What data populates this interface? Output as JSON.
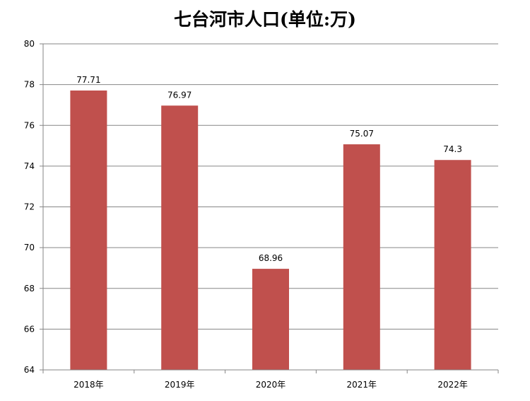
{
  "chart_data": {
    "type": "bar",
    "title": "七台河市人口(单位:万)",
    "xlabel": "",
    "ylabel": "",
    "categories": [
      "2018年",
      "2019年",
      "2020年",
      "2021年",
      "2022年"
    ],
    "values": [
      77.71,
      76.97,
      68.96,
      75.07,
      74.3
    ],
    "value_labels": [
      "77.71",
      "76.97",
      "68.96",
      "75.07",
      "74.3"
    ],
    "ylim": [
      64,
      80
    ],
    "yticks": [
      64,
      66,
      68,
      70,
      72,
      74,
      76,
      78,
      80
    ],
    "grid": true,
    "legend": "none",
    "bar_color": "#C0504D"
  }
}
